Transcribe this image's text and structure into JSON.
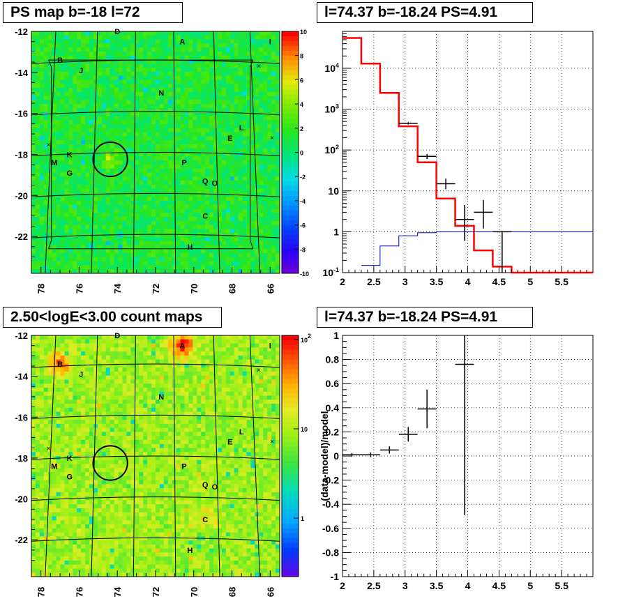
{
  "panels": {
    "top_left": {
      "title": "PS map b=-18 l=72",
      "y_ticks": [
        "-12",
        "-14",
        "-16",
        "-18",
        "-20",
        "-22"
      ],
      "x_ticks": [
        "78",
        "76",
        "74",
        "72",
        "70",
        "68",
        "66"
      ],
      "colorbar_ticks": [
        "10",
        "8",
        "6",
        "4",
        "2",
        "0",
        "-2",
        "-4",
        "-6",
        "-8",
        "-10"
      ],
      "labels": [
        "D",
        "A",
        "I",
        "B",
        "J",
        "N",
        "L",
        "E",
        "K",
        "M",
        "G",
        "P",
        "Q",
        "O",
        "C",
        "H"
      ]
    },
    "top_right": {
      "title": "l=74.37 b=-18.24 PS=4.91",
      "y_ticks": [
        "10^4",
        "10^3",
        "10^2",
        "10",
        "1",
        "10^-1"
      ],
      "x_ticks": [
        "2",
        "2.5",
        "3",
        "3.5",
        "4",
        "4.5",
        "5",
        "5.5"
      ]
    },
    "bottom_left": {
      "title": "2.50<logE<3.00 count maps",
      "y_ticks": [
        "-12",
        "-14",
        "-16",
        "-18",
        "-20",
        "-22"
      ],
      "x_ticks": [
        "78",
        "76",
        "74",
        "72",
        "70",
        "68",
        "66"
      ],
      "colorbar_ticks": [
        "10^2",
        "10",
        "1"
      ],
      "labels": [
        "D",
        "A",
        "I",
        "B",
        "J",
        "N",
        "L",
        "E",
        "K",
        "M",
        "G",
        "P",
        "Q",
        "O",
        "C",
        "H"
      ]
    },
    "bottom_right": {
      "title": "l=74.37 b=-18.24 PS=4.91",
      "ylabel": "(data-model)/model",
      "y_ticks": [
        "1",
        "0.8",
        "0.6",
        "0.4",
        "0.2",
        "0",
        "-0.2",
        "-0.4",
        "-0.6",
        "-0.8",
        "-1"
      ],
      "x_ticks": [
        "2",
        "2.5",
        "3",
        "3.5",
        "4",
        "4.5",
        "5",
        "5.5"
      ]
    }
  },
  "chart_data": [
    {
      "type": "heatmap",
      "title": "PS map b=-18 l=72",
      "xlim": [
        78.5,
        65.5
      ],
      "ylim": [
        -23.8,
        -12
      ],
      "zlim": [
        -10,
        10
      ],
      "grid": true,
      "marked_circle": {
        "l": 74.37,
        "b": -18.24,
        "radius_deg": 0.5
      },
      "sources": [
        {
          "name": "D",
          "l": 74.0,
          "b": -12.0
        },
        {
          "name": "A",
          "l": 70.6,
          "b": -12.5
        },
        {
          "name": "I",
          "l": 66.0,
          "b": -12.5
        },
        {
          "name": "B",
          "l": 77.0,
          "b": -13.4
        },
        {
          "name": "J",
          "l": 75.9,
          "b": -13.9
        },
        {
          "name": "N",
          "l": 71.7,
          "b": -15.0
        },
        {
          "name": "L",
          "l": 67.5,
          "b": -16.7
        },
        {
          "name": "E",
          "l": 68.1,
          "b": -17.2
        },
        {
          "name": "K",
          "l": 76.5,
          "b": -18.0
        },
        {
          "name": "M",
          "l": 77.3,
          "b": -18.4
        },
        {
          "name": "G",
          "l": 76.5,
          "b": -18.9
        },
        {
          "name": "P",
          "l": 70.5,
          "b": -18.4
        },
        {
          "name": "Q",
          "l": 69.4,
          "b": -19.3
        },
        {
          "name": "O",
          "l": 68.9,
          "b": -19.4
        },
        {
          "name": "C",
          "l": 69.4,
          "b": -21.0
        },
        {
          "name": "H",
          "l": 70.2,
          "b": -22.5
        }
      ]
    },
    {
      "type": "line",
      "title": "l=74.37 b=-18.24 PS=4.91",
      "xlim": [
        2,
        6
      ],
      "ylim": [
        0.1,
        80000
      ],
      "ylog": true,
      "grid": true,
      "series": [
        {
          "color": "#ff0000",
          "edges": [
            2,
            2.3,
            2.6,
            2.9,
            3.2,
            3.5,
            3.8,
            4.1,
            4.4,
            4.7,
            6
          ],
          "values": [
            55000,
            13000,
            2500,
            380,
            50,
            6.5,
            1.4,
            0.35,
            0.14,
            0.1
          ]
        },
        {
          "color": "#0000cc",
          "edges": [
            2.3,
            2.6,
            2.9,
            3.2,
            3.5,
            3.8,
            4.1,
            4.4,
            4.7,
            6
          ],
          "values": [
            0.15,
            0.45,
            0.8,
            0.95,
            1.0,
            1.0,
            1.0,
            1.0,
            1.0
          ]
        },
        {
          "color": "#000000",
          "points": [
            {
              "x": 3.05,
              "y": 450,
              "xerr": 0.15,
              "ylo": 420,
              "yhi": 480
            },
            {
              "x": 3.35,
              "y": 70,
              "xerr": 0.15,
              "ylo": 60,
              "yhi": 80
            },
            {
              "x": 3.65,
              "y": 15,
              "xerr": 0.15,
              "ylo": 11,
              "yhi": 20
            },
            {
              "x": 3.95,
              "y": 2,
              "xerr": 0.15,
              "ylo": 0.6,
              "yhi": 4.5
            },
            {
              "x": 4.25,
              "y": 3,
              "xerr": 0.15,
              "ylo": 1.2,
              "yhi": 6
            },
            {
              "x": 4.55,
              "y": 1,
              "xerr": 0.15,
              "ylo": 0.1,
              "yhi": 1.05
            }
          ]
        }
      ]
    },
    {
      "type": "heatmap",
      "title": "2.50<logE<3.00 count maps",
      "xlim": [
        78.5,
        65.5
      ],
      "ylim": [
        -23.8,
        -12
      ],
      "zlog": true,
      "grid": true,
      "marked_circle": {
        "l": 74.37,
        "b": -18.24,
        "radius_deg": 0.5
      },
      "hotspots": [
        {
          "l": 70.6,
          "b": -12.5,
          "strength": 1.0
        },
        {
          "l": 77.0,
          "b": -13.4,
          "strength": 0.7
        },
        {
          "l": 69.4,
          "b": -21.0,
          "strength": 0.35
        }
      ]
    },
    {
      "type": "scatter",
      "title": "l=74.37 b=-18.24 PS=4.91",
      "ylabel": "(data-model)/model",
      "xlim": [
        2,
        6
      ],
      "ylim": [
        -1,
        1
      ],
      "grid": true,
      "points": [
        {
          "x": 2.15,
          "y": 0.01,
          "xerr": 0.15,
          "yerr": 0.015
        },
        {
          "x": 2.45,
          "y": 0.01,
          "xerr": 0.15,
          "yerr": 0.02
        },
        {
          "x": 2.75,
          "y": 0.05,
          "xerr": 0.15,
          "yerr": 0.03
        },
        {
          "x": 3.05,
          "y": 0.18,
          "xerr": 0.15,
          "yerr": 0.06
        },
        {
          "x": 3.35,
          "y": 0.39,
          "xerr": 0.15,
          "yerr": 0.16
        },
        {
          "x": 3.95,
          "y": 0.76,
          "xerr": 0.15,
          "yerr": 1.25
        }
      ]
    }
  ]
}
